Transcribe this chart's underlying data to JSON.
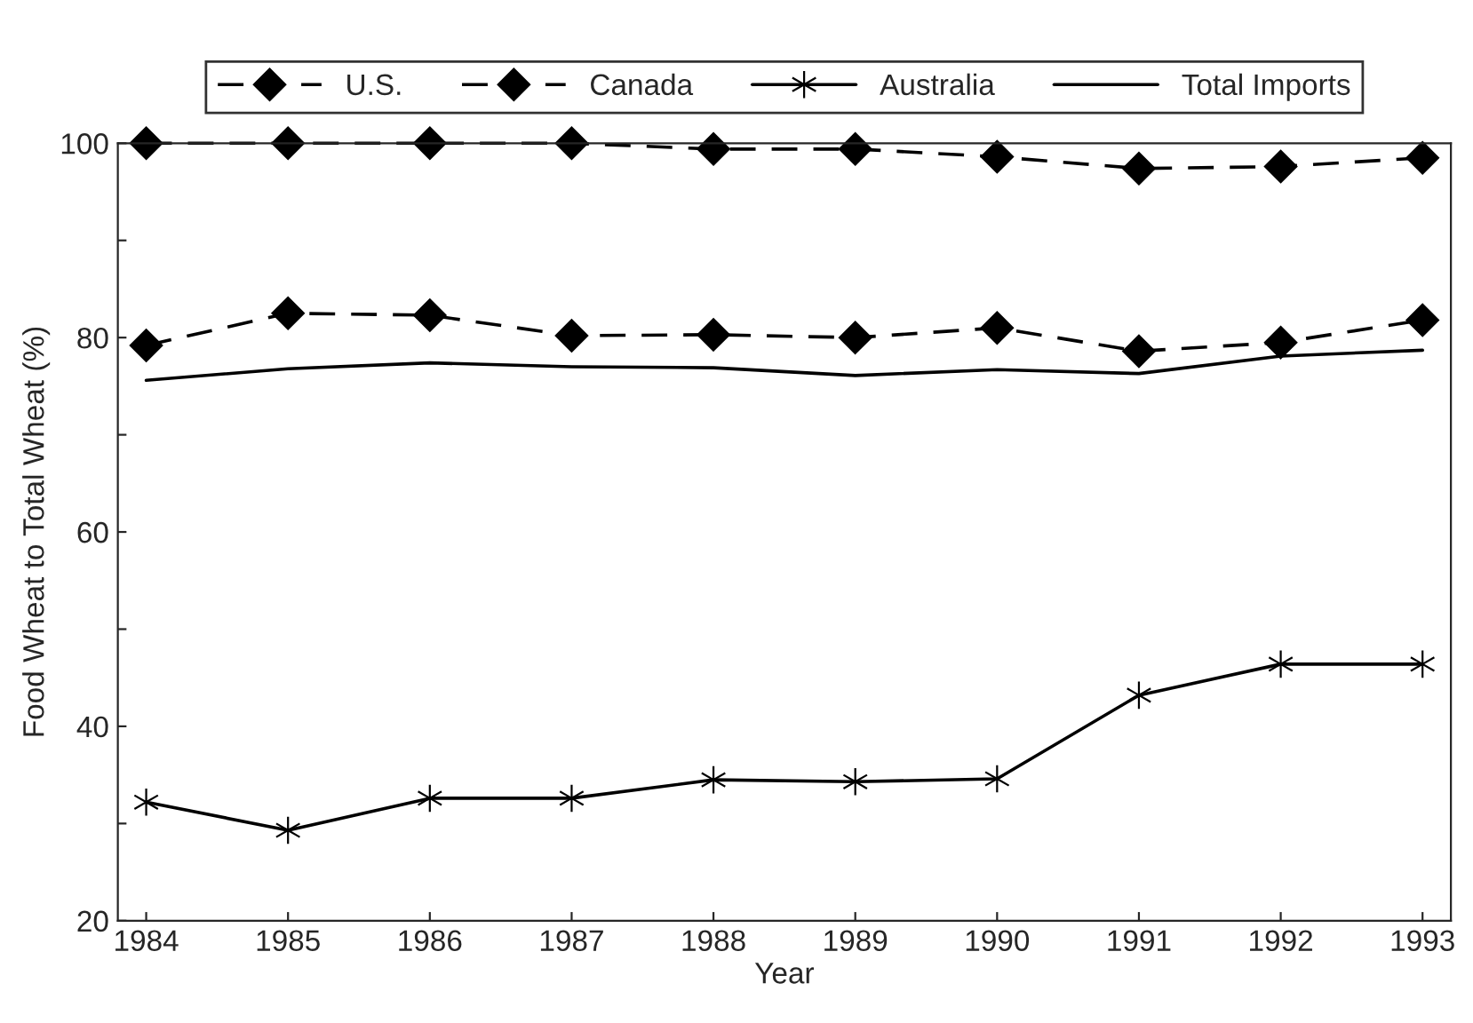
{
  "chart_data": {
    "type": "line",
    "xlabel": "Year",
    "ylabel": "Food Wheat to Total Wheat (%)",
    "x": [
      1984,
      1985,
      1986,
      1987,
      1988,
      1989,
      1990,
      1991,
      1992,
      1993
    ],
    "series": [
      {
        "name": "U.S.",
        "color": "#000000",
        "marker": "diamond",
        "line_style": "dashed",
        "values": [
          79.2,
          82.5,
          82.3,
          80.2,
          80.3,
          80.0,
          81.0,
          78.6,
          79.5,
          81.8
        ]
      },
      {
        "name": "Canada",
        "color": "#000000",
        "marker": "diamond",
        "line_style": "dashed",
        "values": [
          100,
          100,
          100,
          100,
          99.4,
          99.4,
          98.6,
          97.4,
          97.6,
          98.5
        ]
      },
      {
        "name": "Australia",
        "color": "#000000",
        "marker": "cross",
        "line_style": "solid",
        "values": [
          32.2,
          29.3,
          32.6,
          32.6,
          34.5,
          34.3,
          34.6,
          43.2,
          46.4,
          46.4
        ]
      },
      {
        "name": "Total Imports",
        "color": "#000000",
        "marker": "none",
        "line_style": "solid",
        "values": [
          75.6,
          76.8,
          77.4,
          77.0,
          76.9,
          76.1,
          76.7,
          76.3,
          78.1,
          78.7
        ]
      }
    ],
    "xlim": [
      1983.8,
      1993.2
    ],
    "xticks": [
      1984,
      1985,
      1986,
      1987,
      1988,
      1989,
      1990,
      1991,
      1992,
      1993
    ],
    "ylim": [
      20,
      100
    ],
    "yticks": [
      20,
      {
        "value": 30,
        "label": null
      },
      40,
      {
        "value": 50,
        "label": null
      },
      60,
      {
        "value": 70,
        "label": null
      },
      80,
      {
        "value": 90,
        "label": null
      },
      100
    ],
    "grid": false,
    "legend": "top"
  }
}
